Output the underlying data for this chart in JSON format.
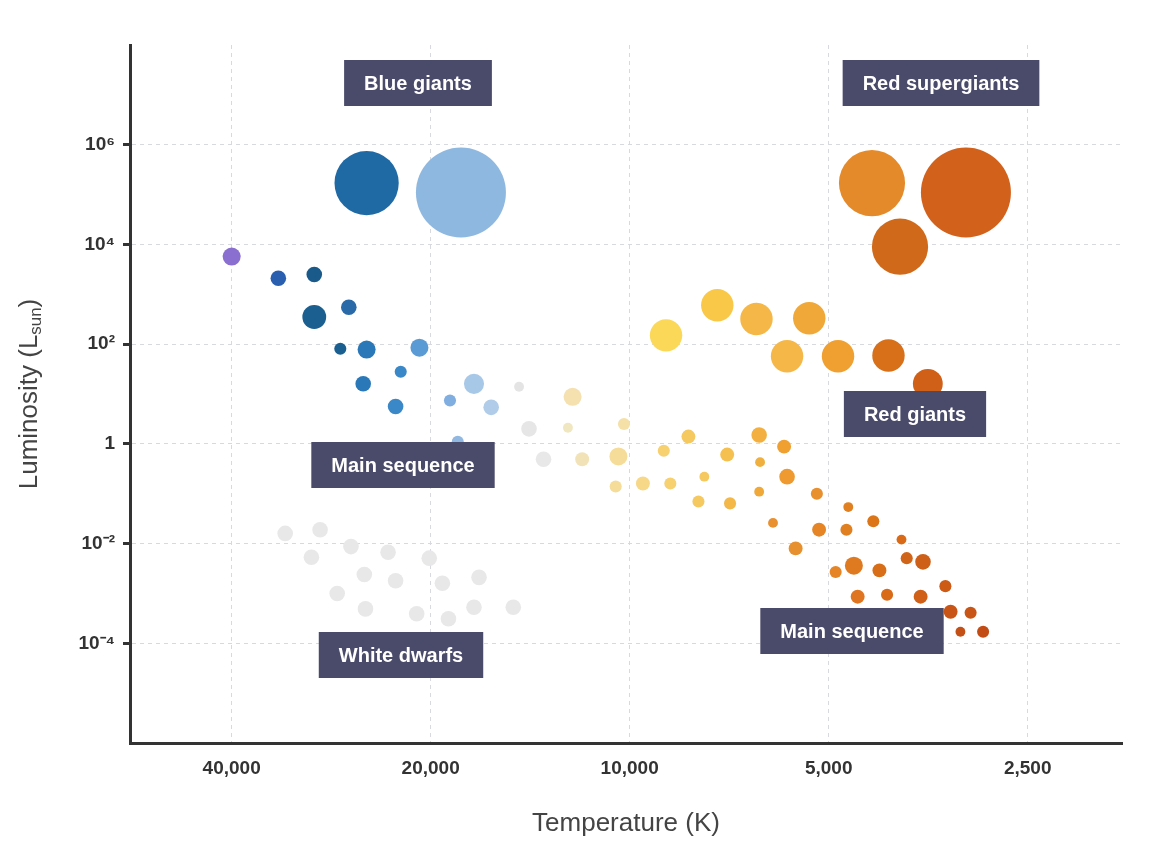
{
  "chart_data": {
    "type": "bubble",
    "xlabel": "Temperature (K)",
    "ylabel": "Luminosity (L$_{sun}$)",
    "log": "xy",
    "grid": true,
    "xlim": [
      57000,
      1800
    ],
    "xticks": [
      {
        "value": 40000,
        "label": "40,000"
      },
      {
        "value": 20000,
        "label": "20,000"
      },
      {
        "value": 10000,
        "label": "10,000"
      },
      {
        "value": 5000,
        "label": "5,000"
      },
      {
        "value": 2500,
        "label": "2,500"
      }
    ],
    "ylim": [
      1e-06,
      100000000
    ],
    "yticks": [
      {
        "value": 0.0001,
        "label": "10⁻⁴"
      },
      {
        "value": 0.01,
        "label": "10⁻²"
      },
      1,
      {
        "value": 100,
        "label": "10²"
      },
      {
        "value": 10000,
        "label": "10⁴"
      },
      {
        "value": 1000000,
        "label": "10⁶"
      }
    ],
    "x": [
      25000,
      18000,
      4300,
      3100,
      3900,
      40000,
      34000,
      30000,
      30000,
      26600,
      27400,
      25000,
      20800,
      25300,
      22200,
      22600,
      18700,
      17200,
      16200,
      18200,
      14700,
      14200,
      13500,
      12400,
      12200,
      11800,
      10200,
      10400,
      10500,
      9550,
      8680,
      8880,
      8150,
      7710,
      7870,
      7120,
      7050,
      6370,
      6350,
      6370,
      5840,
      5780,
      6070,
      5210,
      5610,
      5170,
      4670,
      4700,
      4280,
      3880,
      4880,
      4580,
      4190,
      3810,
      3600,
      4520,
      4080,
      3630,
      3330,
      3270,
      3050,
      3160,
      2920,
      8810,
      7370,
      6430,
      5350,
      5780,
      4840,
      4060,
      3540,
      33200,
      29400,
      30300,
      26400,
      25200,
      23200,
      27700,
      22600,
      25100,
      20100,
      19200,
      21000,
      16900,
      18800,
      17200,
      15000
    ],
    "values": [
      170000,
      110000,
      170000,
      110000,
      9000,
      5700,
      2100,
      2500,
      350,
      550,
      81,
      78,
      85,
      16,
      28,
      5.6,
      7.4,
      16,
      5.4,
      1.1,
      14,
      2.0,
      0.49,
      2.1,
      8.8,
      0.49,
      2.5,
      0.56,
      0.14,
      0.16,
      0.16,
      0.73,
      1.4,
      0.22,
      0.07,
      0.61,
      0.064,
      1.5,
      0.43,
      0.11,
      0.88,
      0.22,
      0.026,
      0.1,
      0.008,
      0.019,
      0.054,
      0.019,
      0.028,
      0.012,
      0.0027,
      0.0036,
      0.0029,
      0.0051,
      0.0043,
      0.00086,
      0.00094,
      0.00086,
      0.0014,
      0.00043,
      0.00041,
      0.00017,
      0.00017,
      150,
      600,
      320,
      330,
      57,
      57,
      59,
      16,
      0.016,
      0.019,
      0.0053,
      0.0087,
      0.0024,
      0.0067,
      0.001,
      0.0018,
      0.00049,
      0.0051,
      0.0016,
      0.00039,
      0.0021,
      0.00031,
      0.00053,
      0.00053
    ],
    "sizes": [
      0.51,
      1,
      0.54,
      1,
      0.39,
      0.04,
      0.03,
      0.03,
      0.07,
      0.03,
      0.018,
      0.04,
      0.04,
      0.03,
      0.018,
      0.03,
      0.018,
      0.05,
      0.03,
      0.018,
      0.012,
      0.03,
      0.03,
      0.012,
      0.04,
      0.024,
      0.018,
      0.04,
      0.018,
      0.024,
      0.018,
      0.018,
      0.024,
      0.012,
      0.018,
      0.024,
      0.018,
      0.03,
      0.012,
      0.012,
      0.024,
      0.03,
      0.012,
      0.018,
      0.024,
      0.024,
      0.012,
      0.018,
      0.018,
      0.012,
      0.018,
      0.04,
      0.024,
      0.018,
      0.03,
      0.024,
      0.018,
      0.024,
      0.018,
      0.024,
      0.018,
      0.012,
      0.018,
      0.13,
      0.13,
      0.13,
      0.13,
      0.13,
      0.13,
      0.13,
      0.11,
      0.03,
      0.03,
      0.03,
      0.03,
      0.03,
      0.03,
      0.03,
      0.03,
      0.03,
      0.03,
      0.03,
      0.03,
      0.03,
      0.03,
      0.03,
      0.03
    ],
    "colors": [
      "#1f6aa5",
      "#8fb8e0",
      "#e58a2a",
      "#d2611c",
      "#d06a1a",
      "#8a6fd0",
      "#2a5fb0",
      "#1a5a8a",
      "#1a5f8f",
      "#2a6aa8",
      "#1a5f8f",
      "#2a78b8",
      "#5b9bd5",
      "#2a78b8",
      "#3a88c8",
      "#3a88c8",
      "#80aee0",
      "#a8c8e8",
      "#b0cce8",
      "#90b8e0",
      "#e4e4e4",
      "#e6e6e6",
      "#e8e8e8",
      "#f0e6c0",
      "#f5e0b0",
      "#f2e2b8",
      "#f5e0a8",
      "#f5dc98",
      "#f5dc98",
      "#f7d888",
      "#f7d070",
      "#f7d070",
      "#f5c860",
      "#f5c860",
      "#f5c860",
      "#f5c050",
      "#f3b848",
      "#f3b040",
      "#f0b040",
      "#f0a838",
      "#f0a030",
      "#ee9a30",
      "#e99030",
      "#e89030",
      "#e69030",
      "#e58525",
      "#e08020",
      "#e08020",
      "#db7518",
      "#d86a18",
      "#e58525",
      "#e07a20",
      "#d86e18",
      "#d06418",
      "#cd5f18",
      "#df7520",
      "#d86a18",
      "#d06018",
      "#cd5a15",
      "#c85515",
      "#c85515",
      "#c55015",
      "#c34c15",
      "#fbd858",
      "#f9c848",
      "#f5b848",
      "#f0a838",
      "#f5b848",
      "#f0a030",
      "#d8701a",
      "#d06018",
      "#e8e8e8",
      "#e8e8e8",
      "#e8e8e8",
      "#e8e8e8",
      "#e8e8e8",
      "#e8e8e8",
      "#e8e8e8",
      "#e8e8e8",
      "#e8e8e8",
      "#e8e8e8",
      "#e8e8e8",
      "#e8e8e8",
      "#e8e8e8",
      "#e8e8e8",
      "#e8e8e8",
      "#e8e8e8"
    ],
    "annotations": [
      "Blue giants",
      "Red supergiants",
      "Red giants",
      "Main sequence",
      "Main sequence",
      "White dwarfs"
    ]
  }
}
